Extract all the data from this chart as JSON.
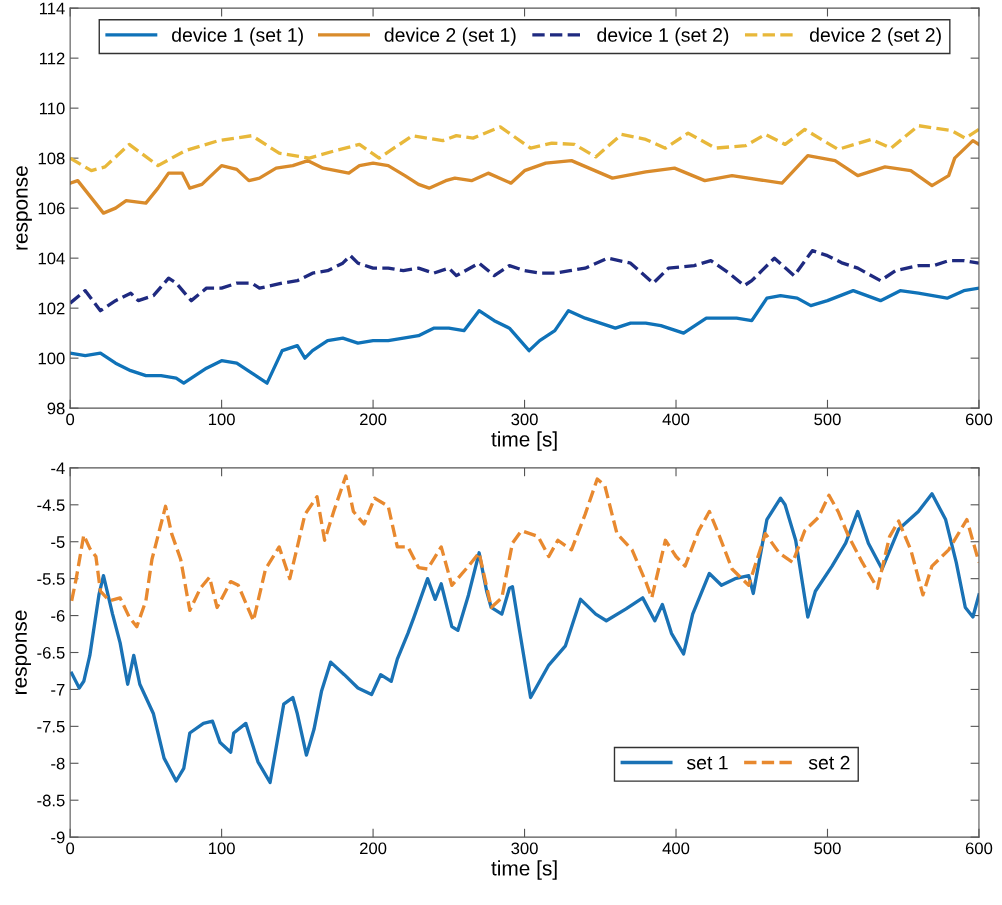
{
  "chart_data": [
    {
      "type": "line",
      "xlabel": "time [s]",
      "ylabel": "response",
      "xlim": [
        0,
        600
      ],
      "xticks": [
        0,
        100,
        200,
        300,
        400,
        500,
        600
      ],
      "ylim": [
        98,
        114
      ],
      "yticks": [
        98,
        100,
        102,
        104,
        106,
        108,
        110,
        112,
        114
      ],
      "grid": false,
      "legend": "top",
      "series": [
        {
          "name": "device 1 (set 1)",
          "color": "#0f72b8",
          "line_style": "solid",
          "x": [
            0,
            10,
            20,
            30,
            40,
            50,
            60,
            70,
            75,
            80,
            90,
            100,
            110,
            120,
            130,
            140,
            150,
            155,
            160,
            170,
            180,
            190,
            200,
            210,
            220,
            230,
            240,
            250,
            260,
            270,
            280,
            290,
            303,
            310,
            320,
            329,
            340,
            360,
            370,
            380,
            390,
            405,
            420,
            440,
            450,
            460,
            469,
            480,
            489,
            500,
            517,
            535,
            548,
            560,
            579,
            590,
            600
          ],
          "values": [
            100.2,
            100.1,
            100.2,
            99.8,
            99.5,
            99.3,
            99.3,
            99.2,
            99.0,
            99.2,
            99.6,
            99.9,
            99.8,
            99.4,
            99.0,
            100.3,
            100.5,
            100.0,
            100.3,
            100.7,
            100.8,
            100.6,
            100.7,
            100.7,
            100.8,
            100.9,
            101.2,
            101.2,
            101.1,
            101.9,
            101.5,
            101.2,
            100.3,
            100.7,
            101.1,
            101.9,
            101.6,
            101.2,
            101.4,
            101.4,
            101.3,
            101.0,
            101.6,
            101.6,
            101.5,
            102.4,
            102.5,
            102.4,
            102.1,
            102.3,
            102.7,
            102.3,
            102.7,
            102.6,
            102.4,
            102.7,
            102.8
          ]
        },
        {
          "name": "device 2 (set 1)",
          "color": "#d98b2b",
          "line_style": "solid",
          "x": [
            0,
            5,
            22,
            30,
            37,
            50,
            58,
            65,
            74,
            79,
            87,
            100,
            110,
            118,
            125,
            136,
            147,
            157,
            167,
            184,
            191,
            200,
            210,
            221,
            230,
            237,
            248,
            254,
            265,
            276,
            291,
            300,
            314,
            331,
            358,
            380,
            399,
            419,
            437,
            470,
            487,
            505,
            520,
            538,
            555,
            569,
            580,
            584,
            596,
            600
          ],
          "values": [
            107.0,
            107.1,
            105.8,
            106.0,
            106.3,
            106.2,
            106.8,
            107.4,
            107.4,
            106.8,
            106.95,
            107.7,
            107.55,
            107.1,
            107.2,
            107.6,
            107.7,
            107.9,
            107.6,
            107.4,
            107.7,
            107.8,
            107.7,
            107.3,
            106.95,
            106.8,
            107.1,
            107.2,
            107.1,
            107.4,
            107.0,
            107.5,
            107.8,
            107.9,
            107.2,
            107.45,
            107.6,
            107.1,
            107.3,
            107.0,
            108.1,
            107.9,
            107.3,
            107.65,
            107.5,
            106.9,
            107.3,
            108.0,
            108.7,
            108.55
          ]
        },
        {
          "name": "device 1 (set 2)",
          "color": "#1f2a80",
          "line_style": "dashed",
          "x": [
            0,
            10,
            20,
            30,
            40,
            45,
            55,
            65,
            70,
            80,
            90,
            100,
            110,
            120,
            125,
            140,
            150,
            160,
            170,
            180,
            185,
            190,
            200,
            210,
            220,
            230,
            240,
            250,
            255,
            270,
            280,
            290,
            300,
            310,
            320,
            330,
            340,
            355,
            370,
            385,
            395,
            412,
            423,
            435,
            445,
            450,
            465,
            478,
            490,
            500,
            510,
            520,
            535,
            545,
            560,
            570,
            580,
            590,
            600
          ],
          "values": [
            102.2,
            102.7,
            101.9,
            102.3,
            102.6,
            102.3,
            102.5,
            103.2,
            103.0,
            102.3,
            102.8,
            102.8,
            103.0,
            103.0,
            102.8,
            103.0,
            103.1,
            103.4,
            103.5,
            103.8,
            104.1,
            103.8,
            103.6,
            103.6,
            103.5,
            103.6,
            103.4,
            103.6,
            103.3,
            103.8,
            103.3,
            103.7,
            103.5,
            103.4,
            103.4,
            103.5,
            103.6,
            104.0,
            103.8,
            103.0,
            103.6,
            103.7,
            103.9,
            103.4,
            102.9,
            103.1,
            104.0,
            103.3,
            104.3,
            104.1,
            103.8,
            103.6,
            103.1,
            103.5,
            103.7,
            103.7,
            103.9,
            103.9,
            103.8
          ]
        },
        {
          "name": "device 2 (set 2)",
          "color": "#e8b83a",
          "line_style": "dashed",
          "x": [
            0,
            14,
            23,
            39,
            58,
            76,
            98,
            120,
            138,
            158,
            175,
            191,
            204,
            226,
            246,
            255,
            266,
            284,
            304,
            318,
            333,
            347,
            364,
            380,
            393,
            408,
            426,
            446,
            459,
            472,
            485,
            507,
            529,
            542,
            560,
            582,
            591,
            600
          ],
          "values": [
            108.0,
            107.5,
            107.65,
            108.55,
            107.7,
            108.3,
            108.7,
            108.9,
            108.2,
            108.0,
            108.3,
            108.55,
            108.0,
            108.9,
            108.7,
            108.9,
            108.8,
            109.25,
            108.4,
            108.6,
            108.55,
            108.05,
            108.95,
            108.75,
            108.4,
            109.0,
            108.4,
            108.5,
            108.95,
            108.55,
            109.15,
            108.35,
            108.75,
            108.4,
            109.3,
            109.1,
            108.8,
            109.15
          ]
        }
      ]
    },
    {
      "type": "line",
      "xlabel": "time [s]",
      "ylabel": "response",
      "xlim": [
        0,
        600
      ],
      "xticks": [
        0,
        100,
        200,
        300,
        400,
        500,
        600
      ],
      "ylim": [
        -9,
        -4
      ],
      "yticks": [
        -9,
        -8.5,
        -8,
        -7.5,
        -7,
        -6.5,
        -6,
        -5.5,
        -5,
        -4.5,
        -4
      ],
      "grid": false,
      "legend": "bottom right",
      "series": [
        {
          "name": "set 1",
          "color": "#1a72b5",
          "line_style": "solid",
          "x": [
            1,
            6,
            9,
            13,
            19,
            22,
            28,
            33,
            38,
            42,
            46,
            55,
            62,
            70,
            75,
            79,
            88,
            94,
            99,
            106,
            108,
            116,
            124,
            132,
            141,
            147,
            150,
            156,
            161,
            166,
            172,
            181,
            190,
            199,
            205,
            212,
            216,
            223,
            227,
            236,
            241,
            245,
            252,
            256,
            263,
            270,
            275,
            278,
            285,
            290,
            292,
            297,
            304,
            316,
            327,
            337,
            347,
            354,
            367,
            378,
            386,
            391,
            397,
            405,
            411,
            422,
            430,
            439,
            448,
            451,
            460,
            469,
            472,
            479,
            487,
            492,
            503,
            512,
            520,
            527,
            536,
            547,
            560,
            569,
            578,
            585,
            591,
            596,
            600
          ],
          "values": [
            -6.78,
            -6.98,
            -6.89,
            -6.54,
            -5.72,
            -5.46,
            -5.98,
            -6.37,
            -6.93,
            -6.54,
            -6.93,
            -7.33,
            -7.93,
            -8.24,
            -8.07,
            -7.59,
            -7.46,
            -7.43,
            -7.72,
            -7.85,
            -7.59,
            -7.46,
            -7.98,
            -8.26,
            -7.2,
            -7.11,
            -7.33,
            -7.89,
            -7.54,
            -7.02,
            -6.63,
            -6.8,
            -6.98,
            -7.07,
            -6.8,
            -6.89,
            -6.59,
            -6.24,
            -6.02,
            -5.5,
            -5.78,
            -5.57,
            -6.15,
            -6.2,
            -5.72,
            -5.15,
            -5.67,
            -5.89,
            -5.98,
            -5.63,
            -5.61,
            -6.24,
            -7.11,
            -6.67,
            -6.41,
            -5.78,
            -5.98,
            -6.07,
            -5.91,
            -5.76,
            -6.07,
            -5.85,
            -6.24,
            -6.52,
            -5.98,
            -5.43,
            -5.59,
            -5.5,
            -5.46,
            -5.7,
            -4.7,
            -4.41,
            -4.5,
            -4.98,
            -6.02,
            -5.67,
            -5.33,
            -5.02,
            -4.59,
            -5.02,
            -5.37,
            -4.83,
            -4.59,
            -4.35,
            -4.7,
            -5.28,
            -5.89,
            -6.02,
            -5.72
          ]
        },
        {
          "name": "set 2",
          "color": "#e8892f",
          "line_style": "dashed",
          "x": [
            1,
            4,
            9,
            13,
            17,
            20,
            26,
            33,
            39,
            44,
            50,
            54,
            60,
            63,
            67,
            73,
            79,
            86,
            92,
            97,
            106,
            111,
            121,
            129,
            138,
            145,
            150,
            155,
            163,
            168,
            174,
            182,
            187,
            194,
            201,
            210,
            216,
            223,
            230,
            236,
            245,
            252,
            263,
            270,
            278,
            285,
            292,
            298,
            309,
            316,
            322,
            331,
            340,
            348,
            353,
            361,
            371,
            380,
            384,
            393,
            400,
            406,
            415,
            422,
            428,
            437,
            448,
            459,
            468,
            477,
            485,
            494,
            501,
            507,
            514,
            523,
            533,
            541,
            547,
            555,
            563,
            569,
            580,
            592,
            600
          ],
          "values": [
            -5.8,
            -5.5,
            -4.91,
            -5.09,
            -5.2,
            -5.67,
            -5.8,
            -5.76,
            -6.02,
            -6.15,
            -5.8,
            -5.24,
            -4.76,
            -4.52,
            -4.89,
            -5.24,
            -5.93,
            -5.63,
            -5.48,
            -5.89,
            -5.54,
            -5.59,
            -6.07,
            -5.37,
            -5.07,
            -5.5,
            -5.07,
            -4.63,
            -4.39,
            -4.98,
            -4.59,
            -4.11,
            -4.59,
            -4.76,
            -4.41,
            -4.52,
            -5.07,
            -5.07,
            -5.35,
            -5.37,
            -5.07,
            -5.59,
            -5.33,
            -5.15,
            -5.89,
            -5.76,
            -5.02,
            -4.85,
            -4.93,
            -5.2,
            -4.98,
            -5.11,
            -4.63,
            -4.15,
            -4.24,
            -4.89,
            -5.11,
            -5.54,
            -5.76,
            -4.98,
            -5.2,
            -5.33,
            -4.85,
            -4.59,
            -4.89,
            -5.37,
            -5.59,
            -4.89,
            -5.15,
            -5.28,
            -4.85,
            -4.67,
            -4.37,
            -4.59,
            -4.93,
            -5.28,
            -5.63,
            -4.93,
            -4.72,
            -5.11,
            -5.72,
            -5.33,
            -5.11,
            -4.7,
            -5.28
          ]
        }
      ]
    }
  ]
}
